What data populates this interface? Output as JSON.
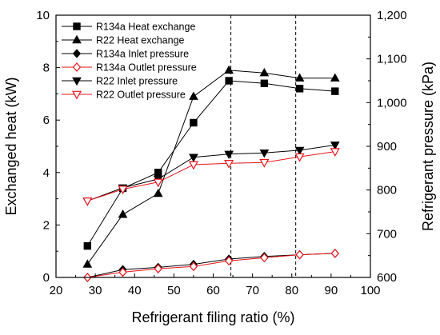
{
  "chart_data": {
    "type": "line",
    "xlabel": "Refrigerant filing ratio (%)",
    "ylabel_left": "Exchanged heat  (kW)",
    "ylabel_right": "Refrigerant pressure (kPa)",
    "xlim": [
      20,
      100
    ],
    "ylim_left": [
      0,
      10
    ],
    "ylim_right": [
      600,
      1200
    ],
    "x_ticks": [
      "20",
      "30",
      "40",
      "50",
      "60",
      "70",
      "80",
      "90",
      "100"
    ],
    "y_left_ticks": [
      "0",
      "2",
      "4",
      "6",
      "8",
      "10"
    ],
    "y_right_ticks": [
      "600",
      "700",
      "800",
      "900",
      "1,000",
      "1,100",
      "1,200"
    ],
    "legend_position": "top-left",
    "vertical_reference_lines_x": [
      64.5,
      81
    ],
    "series": [
      {
        "name": "R134a Heat exchange",
        "axis": "left",
        "color": "#000000",
        "marker": "square-filled",
        "x": [
          28,
          37,
          46,
          55,
          64,
          73,
          82,
          91
        ],
        "y": [
          1.2,
          3.4,
          4.0,
          5.9,
          7.5,
          7.4,
          7.2,
          7.1
        ]
      },
      {
        "name": "R22 Heat exchange",
        "axis": "left",
        "color": "#000000",
        "marker": "triangle-up-filled",
        "x": [
          28,
          37,
          46,
          55,
          64,
          73,
          82,
          91
        ],
        "y": [
          0.5,
          2.4,
          3.2,
          6.9,
          7.9,
          7.8,
          7.6,
          7.6
        ]
      },
      {
        "name": "R134a Inlet pressure",
        "axis": "right",
        "color": "#000000",
        "marker": "diamond-filled",
        "x": [
          28,
          37,
          46,
          55,
          64,
          73,
          82,
          91
        ],
        "y": [
          600,
          618,
          623,
          630,
          642,
          648,
          652,
          655
        ]
      },
      {
        "name": "R134a Outlet pressure",
        "axis": "right",
        "color": "#e8141b",
        "marker": "diamond-open",
        "x": [
          28,
          37,
          46,
          55,
          64,
          73,
          82,
          91
        ],
        "y": [
          600,
          612,
          620,
          625,
          638,
          645,
          652,
          655
        ]
      },
      {
        "name": "R22 Inlet pressure",
        "axis": "right",
        "color": "#000000",
        "marker": "triangle-down-filled",
        "x": [
          28,
          37,
          46,
          55,
          64,
          73,
          82,
          91
        ],
        "y": [
          775,
          805,
          825,
          875,
          882,
          885,
          891,
          903
        ]
      },
      {
        "name": "R22 Outlet pressure",
        "axis": "right",
        "color": "#e8141b",
        "marker": "triangle-down-open",
        "x": [
          28,
          37,
          46,
          55,
          64,
          73,
          82,
          91
        ],
        "y": [
          775,
          802,
          818,
          858,
          861,
          863,
          876,
          888
        ]
      }
    ]
  }
}
